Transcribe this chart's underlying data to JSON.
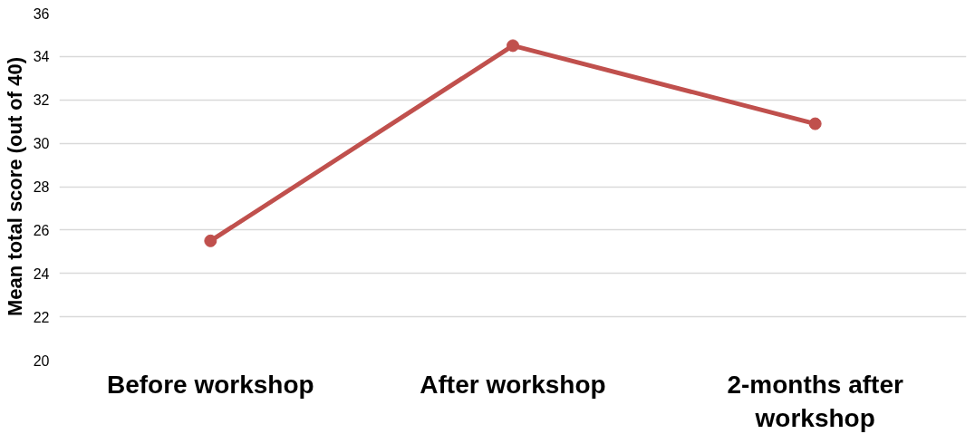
{
  "chart_data": {
    "type": "line",
    "ylabel": "Mean total score (out of 40)",
    "categories": [
      "Before workshop",
      "After workshop",
      "2-months after workshop"
    ],
    "series": [
      {
        "color": "#c0504d",
        "values": [
          25.5,
          34.5,
          30.9
        ]
      }
    ],
    "ylim": [
      20,
      36
    ],
    "yticks": [
      20,
      22,
      24,
      26,
      28,
      30,
      32,
      34,
      36
    ],
    "grid": "y",
    "marker": "circle",
    "line_style": "solid"
  }
}
